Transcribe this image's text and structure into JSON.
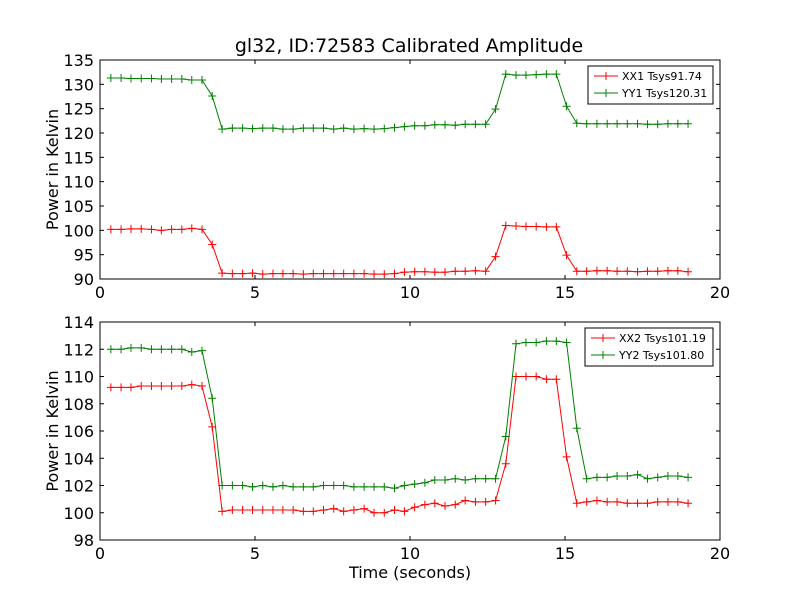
{
  "title": "gl32, ID:72583 Calibrated Amplitude",
  "colors": {
    "xx": "#ff0000",
    "yy": "#008000"
  },
  "chart_data": [
    {
      "type": "line",
      "title": "gl32, ID:72583 Calibrated Amplitude",
      "xlabel": "",
      "ylabel": "Power in Kelvin",
      "xlim": [
        0,
        20
      ],
      "ylim": [
        90,
        135
      ],
      "xticks": [
        0,
        5,
        10,
        15,
        20
      ],
      "yticks": [
        90,
        95,
        100,
        105,
        110,
        115,
        120,
        125,
        130,
        135
      ],
      "grid": false,
      "legend_position": "top-right",
      "marker": "+",
      "x": [
        0.35,
        0.68,
        1.0,
        1.33,
        1.66,
        1.98,
        2.31,
        2.64,
        2.96,
        3.29,
        3.62,
        3.94,
        4.27,
        4.6,
        4.92,
        5.25,
        5.58,
        5.9,
        6.23,
        6.56,
        6.88,
        7.21,
        7.54,
        7.86,
        8.19,
        8.52,
        8.84,
        9.17,
        9.5,
        9.82,
        10.15,
        10.48,
        10.8,
        11.13,
        11.46,
        11.78,
        12.11,
        12.44,
        12.76,
        13.09,
        13.42,
        13.74,
        14.07,
        14.4,
        14.72,
        15.05,
        15.38,
        15.7,
        16.03,
        16.36,
        16.68,
        17.01,
        17.34,
        17.66,
        17.99,
        18.32,
        18.64,
        18.97
      ],
      "series": [
        {
          "name": "XX1 Tsys91.74",
          "color": "#ff0000",
          "values": [
            100.2,
            100.2,
            100.3,
            100.3,
            100.2,
            100.0,
            100.2,
            100.2,
            100.4,
            100.2,
            97.1,
            91.2,
            91.1,
            91.1,
            91.2,
            91.0,
            91.1,
            91.1,
            91.1,
            91.0,
            91.1,
            91.1,
            91.1,
            91.1,
            91.1,
            91.1,
            91.0,
            91.0,
            91.1,
            91.4,
            91.5,
            91.5,
            91.4,
            91.4,
            91.6,
            91.6,
            91.7,
            91.6,
            94.6,
            101.0,
            100.9,
            100.8,
            100.8,
            100.7,
            100.7,
            94.9,
            91.6,
            91.6,
            91.7,
            91.7,
            91.6,
            91.6,
            91.5,
            91.6,
            91.6,
            91.7,
            91.7,
            91.5
          ]
        },
        {
          "name": "YY1 Tsys120.31",
          "color": "#008000",
          "values": [
            131.3,
            131.3,
            131.2,
            131.2,
            131.2,
            131.1,
            131.1,
            131.1,
            130.9,
            130.9,
            127.6,
            120.8,
            121.0,
            121.0,
            120.9,
            121.0,
            121.0,
            120.8,
            120.8,
            121.0,
            121.0,
            121.0,
            120.8,
            121.0,
            120.8,
            120.9,
            120.8,
            120.9,
            121.1,
            121.3,
            121.5,
            121.5,
            121.7,
            121.7,
            121.6,
            121.8,
            121.8,
            121.8,
            124.9,
            132.1,
            131.9,
            131.9,
            132.0,
            132.1,
            132.1,
            125.5,
            122.0,
            121.9,
            121.9,
            121.9,
            121.9,
            121.9,
            121.9,
            121.8,
            121.8,
            121.9,
            121.9,
            121.9
          ]
        }
      ]
    },
    {
      "type": "line",
      "title": "",
      "xlabel": "Time (seconds)",
      "ylabel": "Power in Kelvin",
      "xlim": [
        0,
        20
      ],
      "ylim": [
        98,
        114
      ],
      "xticks": [
        0,
        5,
        10,
        15,
        20
      ],
      "yticks": [
        98,
        100,
        102,
        104,
        106,
        108,
        110,
        112,
        114
      ],
      "grid": false,
      "legend_position": "top-right",
      "marker": "+",
      "x": [
        0.35,
        0.68,
        1.0,
        1.33,
        1.66,
        1.98,
        2.31,
        2.64,
        2.96,
        3.29,
        3.62,
        3.94,
        4.27,
        4.6,
        4.92,
        5.25,
        5.58,
        5.9,
        6.23,
        6.56,
        6.88,
        7.21,
        7.54,
        7.86,
        8.19,
        8.52,
        8.84,
        9.17,
        9.5,
        9.82,
        10.15,
        10.48,
        10.8,
        11.13,
        11.46,
        11.78,
        12.11,
        12.44,
        12.76,
        13.09,
        13.42,
        13.74,
        14.07,
        14.4,
        14.72,
        15.05,
        15.38,
        15.7,
        16.03,
        16.36,
        16.68,
        17.01,
        17.34,
        17.66,
        17.99,
        18.32,
        18.64,
        18.97
      ],
      "series": [
        {
          "name": "XX2 Tsys101.19",
          "color": "#ff0000",
          "values": [
            109.2,
            109.2,
            109.2,
            109.3,
            109.3,
            109.3,
            109.3,
            109.3,
            109.4,
            109.3,
            106.3,
            100.1,
            100.2,
            100.2,
            100.2,
            100.2,
            100.2,
            100.2,
            100.2,
            100.1,
            100.1,
            100.2,
            100.3,
            100.1,
            100.2,
            100.3,
            100.0,
            100.0,
            100.2,
            100.1,
            100.4,
            100.6,
            100.7,
            100.5,
            100.6,
            100.9,
            100.8,
            100.8,
            100.9,
            103.6,
            110.0,
            110.0,
            110.0,
            109.8,
            109.8,
            104.1,
            100.7,
            100.8,
            100.9,
            100.8,
            100.8,
            100.7,
            100.7,
            100.7,
            100.8,
            100.8,
            100.8,
            100.7
          ]
        },
        {
          "name": "YY2 Tsys101.80",
          "color": "#008000",
          "values": [
            112.0,
            112.0,
            112.1,
            112.1,
            112.0,
            112.0,
            112.0,
            112.0,
            111.8,
            111.9,
            108.4,
            102.0,
            102.0,
            102.0,
            101.9,
            102.0,
            101.9,
            102.0,
            101.9,
            101.9,
            101.9,
            102.0,
            102.0,
            102.0,
            101.9,
            101.9,
            101.9,
            101.9,
            101.8,
            102.0,
            102.1,
            102.2,
            102.4,
            102.4,
            102.5,
            102.4,
            102.5,
            102.5,
            102.5,
            105.6,
            112.4,
            112.5,
            112.5,
            112.6,
            112.6,
            112.5,
            106.2,
            102.5,
            102.6,
            102.6,
            102.7,
            102.7,
            102.8,
            102.5,
            102.6,
            102.7,
            102.7,
            102.6
          ]
        }
      ]
    }
  ]
}
